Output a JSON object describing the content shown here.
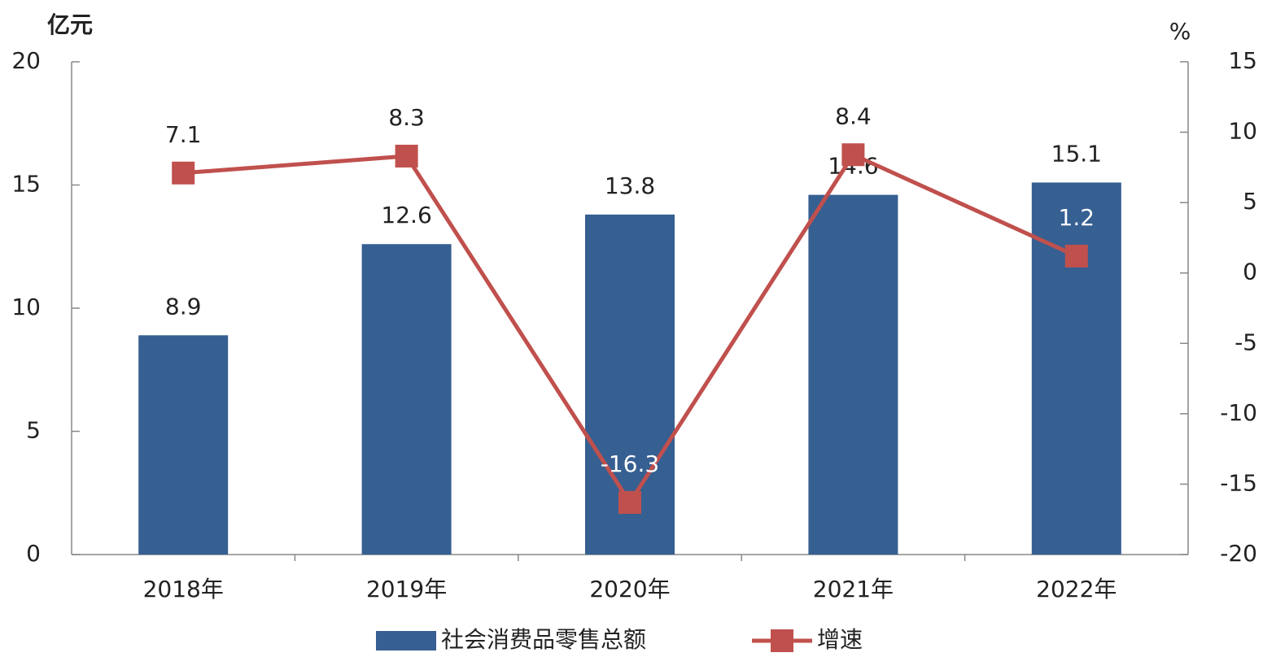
{
  "chart_data": {
    "type": "bar",
    "y_label": "亿元",
    "y2_label": "%",
    "categories": [
      "2018年",
      "2019年",
      "2020年",
      "2021年",
      "2022年"
    ],
    "series": [
      {
        "name": "社会消费品零售总额",
        "type": "bar",
        "color": "#365f92",
        "values": [
          8.9,
          12.6,
          13.8,
          14.6,
          15.1
        ]
      },
      {
        "name": "增速",
        "type": "line",
        "axis": "y2",
        "color": "#c0504d",
        "values": [
          7.1,
          8.3,
          -16.3,
          8.4,
          1.2
        ]
      }
    ],
    "ylim": [
      0,
      20
    ],
    "yticks": [
      0,
      5,
      10,
      15,
      20
    ],
    "y2lim": [
      -20,
      15
    ],
    "y2ticks": [
      -20,
      -15,
      -10,
      -5,
      0,
      5,
      10,
      15
    ],
    "legend": "bottom"
  }
}
